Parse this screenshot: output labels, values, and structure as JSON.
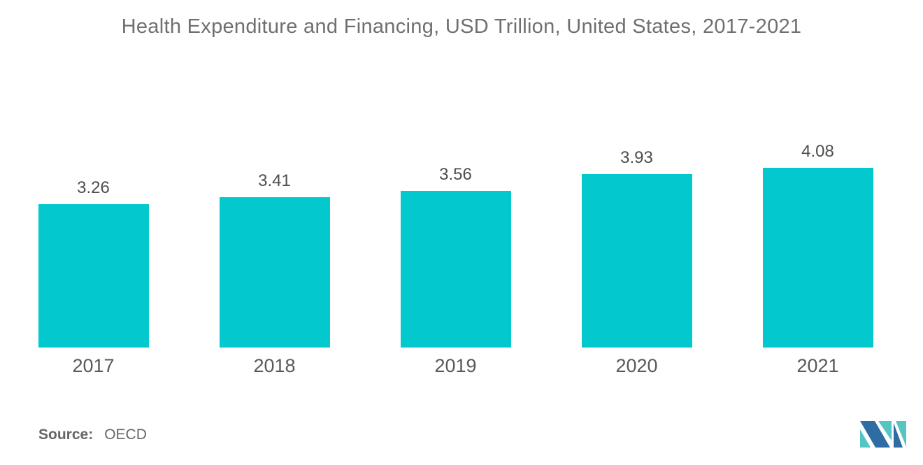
{
  "chart_data": {
    "type": "bar",
    "title": "Health Expenditure and Financing, USD Trillion, United States, 2017-2021",
    "categories": [
      "2017",
      "2018",
      "2019",
      "2020",
      "2021"
    ],
    "values": [
      3.26,
      3.41,
      3.56,
      3.93,
      4.08
    ],
    "value_labels": [
      "3.26",
      "3.41",
      "3.56",
      "3.93",
      "4.08"
    ],
    "xlabel": "",
    "ylabel": "",
    "ylim": [
      0,
      4.08
    ],
    "grid": false,
    "legend": "none",
    "bar_color": "#03C9CF"
  },
  "source": {
    "label": "Source:",
    "value": "OECD"
  },
  "logo": {
    "name": "mordor-intelligence-logo",
    "blue": "#2D6DA4",
    "teal": "#54C5C3"
  },
  "text_colors": {
    "title": "#6F6F6F",
    "value_label": "#4D4D4D",
    "category_label": "#58595B",
    "source": "#666666"
  }
}
